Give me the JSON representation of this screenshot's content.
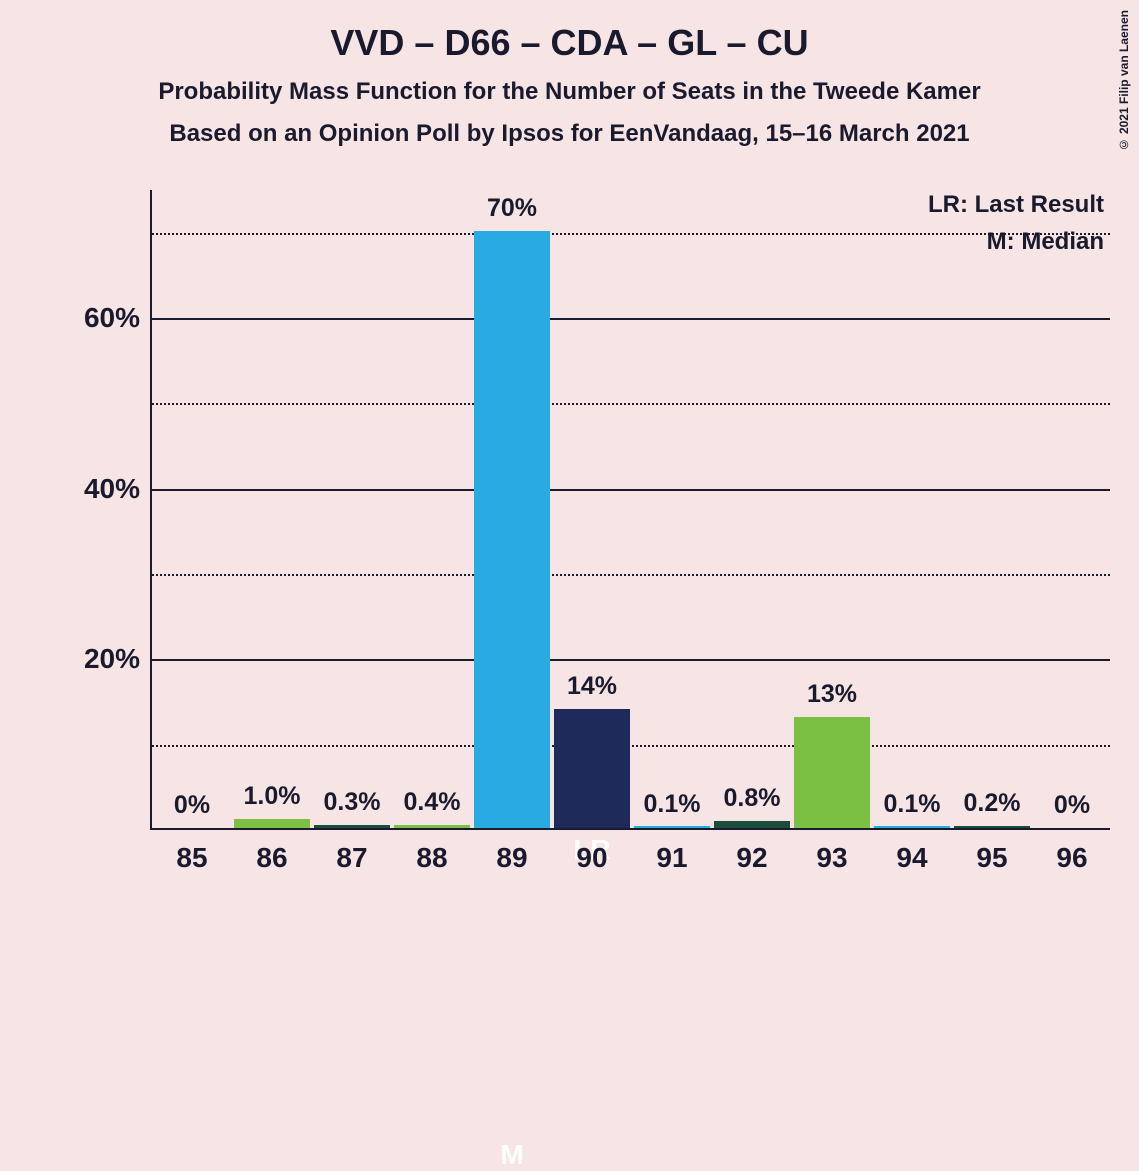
{
  "title": "VVD – D66 – CDA – GL – CU",
  "subtitle1": "Probability Mass Function for the Number of Seats in the Tweede Kamer",
  "subtitle2": "Based on an Opinion Poll by Ipsos for EenVandaag, 15–16 March 2021",
  "copyright": "© 2021 Filip van Laenen",
  "legend": {
    "lr": "LR: Last Result",
    "m": "M: Median"
  },
  "chart": {
    "type": "bar",
    "background_color": "#f7e5e5",
    "axis_color": "#1a1a2e",
    "text_color": "#1a1a2e",
    "marker_text_color": "#ffffff",
    "title_fontsize": 36,
    "subtitle_fontsize": 24,
    "axis_label_fontsize": 28,
    "bar_label_fontsize": 25,
    "legend_fontsize": 24,
    "ylim": [
      0,
      75
    ],
    "y_major_ticks": [
      20,
      40,
      60
    ],
    "y_minor_ticks": [
      10,
      30,
      50,
      70
    ],
    "xcategories": [
      "85",
      "86",
      "87",
      "88",
      "89",
      "90",
      "91",
      "92",
      "93",
      "94",
      "95",
      "96"
    ],
    "bar_width_ratio": 0.95,
    "bars": [
      {
        "x": "85",
        "value": 0,
        "label": "0%",
        "color": "#7bc043",
        "marker": null
      },
      {
        "x": "86",
        "value": 1.0,
        "label": "1.0%",
        "color": "#7bc043",
        "marker": null
      },
      {
        "x": "87",
        "value": 0.3,
        "label": "0.3%",
        "color": "#1a4d3a",
        "marker": null
      },
      {
        "x": "88",
        "value": 0.4,
        "label": "0.4%",
        "color": "#7bc043",
        "marker": null
      },
      {
        "x": "89",
        "value": 70,
        "label": "70%",
        "color": "#29abe2",
        "marker": "M"
      },
      {
        "x": "90",
        "value": 14,
        "label": "14%",
        "color": "#1e2a5a",
        "marker": "LR"
      },
      {
        "x": "91",
        "value": 0.1,
        "label": "0.1%",
        "color": "#29abe2",
        "marker": null
      },
      {
        "x": "92",
        "value": 0.8,
        "label": "0.8%",
        "color": "#1a4d3a",
        "marker": null
      },
      {
        "x": "93",
        "value": 13,
        "label": "13%",
        "color": "#7bc043",
        "marker": null
      },
      {
        "x": "94",
        "value": 0.1,
        "label": "0.1%",
        "color": "#29abe2",
        "marker": null
      },
      {
        "x": "95",
        "value": 0.2,
        "label": "0.2%",
        "color": "#1a4d3a",
        "marker": null
      },
      {
        "x": "96",
        "value": 0,
        "label": "0%",
        "color": "#29abe2",
        "marker": null
      }
    ],
    "colors_meaning": {
      "#29abe2": "median/primary",
      "#1e2a5a": "last-result",
      "#7bc043": "green-light",
      "#1a4d3a": "green-dark"
    }
  }
}
